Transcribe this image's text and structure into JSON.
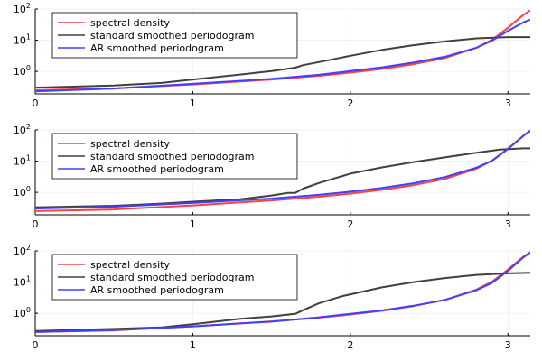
{
  "chart_data": [
    {
      "type": "line",
      "yscale": "log10",
      "xlim": [
        0,
        3.1416
      ],
      "ylim_log10": [
        -0.72,
        2.0
      ],
      "x_ticks": [
        {
          "value": 0,
          "label": "0"
        },
        {
          "value": 1,
          "label": "1"
        },
        {
          "value": 2,
          "label": "2"
        },
        {
          "value": 3,
          "label": "3"
        }
      ],
      "y_ticks": [
        {
          "log10": 0,
          "base": "10",
          "exp": "0"
        },
        {
          "log10": 1,
          "base": "10",
          "exp": "1"
        },
        {
          "log10": 2,
          "base": "10",
          "exp": "2"
        }
      ],
      "grid": true,
      "legend_position": "top-left",
      "series": [
        {
          "name": "spectral density",
          "color": "#ff4040",
          "x": [
            0,
            0.5,
            1.0,
            1.5,
            1.8,
            2.0,
            2.2,
            2.4,
            2.6,
            2.8,
            2.9,
            3.0,
            3.1,
            3.1416
          ],
          "log10": [
            -0.6,
            -0.55,
            -0.42,
            -0.26,
            -0.14,
            -0.04,
            0.08,
            0.23,
            0.43,
            0.76,
            1.02,
            1.4,
            1.82,
            1.96
          ]
        },
        {
          "name": "standard smoothed periodogram",
          "color": "#404040",
          "x": [
            0,
            0.5,
            0.8,
            1.0,
            1.3,
            1.5,
            1.65,
            1.7,
            1.8,
            2.0,
            2.2,
            2.4,
            2.6,
            2.8,
            3.0,
            3.1416
          ],
          "log10": [
            -0.52,
            -0.45,
            -0.37,
            -0.26,
            -0.1,
            0.01,
            0.12,
            0.2,
            0.3,
            0.5,
            0.69,
            0.84,
            0.96,
            1.06,
            1.1,
            1.1
          ]
        },
        {
          "name": "AR smoothed periodogram",
          "color": "#4040ff",
          "x": [
            0,
            0.5,
            1.0,
            1.5,
            1.8,
            2.0,
            2.2,
            2.4,
            2.6,
            2.8,
            2.9,
            3.0,
            3.1,
            3.1416
          ],
          "log10": [
            -0.64,
            -0.55,
            -0.4,
            -0.24,
            -0.11,
            0.01,
            0.13,
            0.28,
            0.47,
            0.76,
            0.99,
            1.3,
            1.58,
            1.66
          ]
        }
      ]
    },
    {
      "type": "line",
      "yscale": "log10",
      "xlim": [
        0,
        3.1416
      ],
      "ylim_log10": [
        -0.72,
        2.0
      ],
      "x_ticks": [
        {
          "value": 0,
          "label": "0"
        },
        {
          "value": 1,
          "label": "1"
        },
        {
          "value": 2,
          "label": "2"
        },
        {
          "value": 3,
          "label": "3"
        }
      ],
      "y_ticks": [
        {
          "log10": 0,
          "base": "10",
          "exp": "0"
        },
        {
          "log10": 1,
          "base": "10",
          "exp": "1"
        },
        {
          "log10": 2,
          "base": "10",
          "exp": "2"
        }
      ],
      "grid": true,
      "legend_position": "top-left",
      "series": [
        {
          "name": "spectral density",
          "color": "#ff4040",
          "x": [
            0,
            0.5,
            1.0,
            1.5,
            1.8,
            2.0,
            2.2,
            2.4,
            2.6,
            2.8,
            2.9,
            3.0,
            3.1,
            3.1416
          ],
          "log10": [
            -0.6,
            -0.55,
            -0.42,
            -0.26,
            -0.14,
            -0.04,
            0.08,
            0.23,
            0.43,
            0.76,
            1.02,
            1.4,
            1.82,
            1.96
          ]
        },
        {
          "name": "standard smoothed periodogram",
          "color": "#404040",
          "x": [
            0,
            0.5,
            0.8,
            1.0,
            1.3,
            1.5,
            1.6,
            1.65,
            1.7,
            1.8,
            2.0,
            2.2,
            2.4,
            2.6,
            2.8,
            2.95,
            3.1,
            3.1416
          ],
          "log10": [
            -0.48,
            -0.43,
            -0.36,
            -0.3,
            -0.22,
            -0.1,
            -0.02,
            -0.02,
            0.12,
            0.3,
            0.6,
            0.8,
            0.97,
            1.12,
            1.27,
            1.37,
            1.41,
            1.41
          ]
        },
        {
          "name": "AR smoothed periodogram",
          "color": "#4040ff",
          "x": [
            0,
            0.5,
            1.0,
            1.5,
            1.8,
            2.0,
            2.2,
            2.4,
            2.6,
            2.8,
            2.9,
            3.0,
            3.1,
            3.1416
          ],
          "log10": [
            -0.52,
            -0.46,
            -0.34,
            -0.2,
            -0.08,
            0.02,
            0.14,
            0.29,
            0.49,
            0.79,
            1.02,
            1.39,
            1.82,
            1.98
          ]
        }
      ]
    },
    {
      "type": "line",
      "yscale": "log10",
      "xlim": [
        0,
        3.1416
      ],
      "ylim_log10": [
        -0.72,
        2.0
      ],
      "x_ticks": [
        {
          "value": 0,
          "label": "0"
        },
        {
          "value": 1,
          "label": "1"
        },
        {
          "value": 2,
          "label": "2"
        },
        {
          "value": 3,
          "label": "3"
        }
      ],
      "y_ticks": [
        {
          "log10": 0,
          "base": "10",
          "exp": "0"
        },
        {
          "log10": 1,
          "base": "10",
          "exp": "1"
        },
        {
          "log10": 2,
          "base": "10",
          "exp": "2"
        }
      ],
      "grid": true,
      "legend_position": "top-left",
      "series": [
        {
          "name": "spectral density",
          "color": "#ff4040",
          "x": [
            0,
            0.5,
            1.0,
            1.5,
            1.8,
            2.0,
            2.2,
            2.4,
            2.6,
            2.8,
            2.9,
            3.0,
            3.1,
            3.1416
          ],
          "log10": [
            -0.6,
            -0.55,
            -0.42,
            -0.26,
            -0.14,
            -0.04,
            0.08,
            0.23,
            0.43,
            0.76,
            1.02,
            1.4,
            1.82,
            1.96
          ]
        },
        {
          "name": "standard smoothed periodogram",
          "color": "#404040",
          "x": [
            0,
            0.5,
            0.8,
            1.0,
            1.3,
            1.5,
            1.65,
            1.7,
            1.8,
            1.95,
            2.2,
            2.4,
            2.6,
            2.8,
            3.0,
            3.1416
          ],
          "log10": [
            -0.57,
            -0.5,
            -0.45,
            -0.35,
            -0.18,
            -0.1,
            -0.02,
            0.1,
            0.32,
            0.55,
            0.83,
            1.0,
            1.13,
            1.23,
            1.28,
            1.3
          ]
        },
        {
          "name": "AR smoothed periodogram",
          "color": "#4040ff",
          "x": [
            0,
            0.5,
            1.0,
            1.5,
            1.8,
            2.0,
            2.2,
            2.4,
            2.6,
            2.8,
            2.9,
            3.0,
            3.1,
            3.1416
          ],
          "log10": [
            -0.6,
            -0.54,
            -0.42,
            -0.27,
            -0.13,
            -0.02,
            0.09,
            0.24,
            0.43,
            0.74,
            0.98,
            1.36,
            1.8,
            1.95
          ]
        }
      ]
    }
  ]
}
